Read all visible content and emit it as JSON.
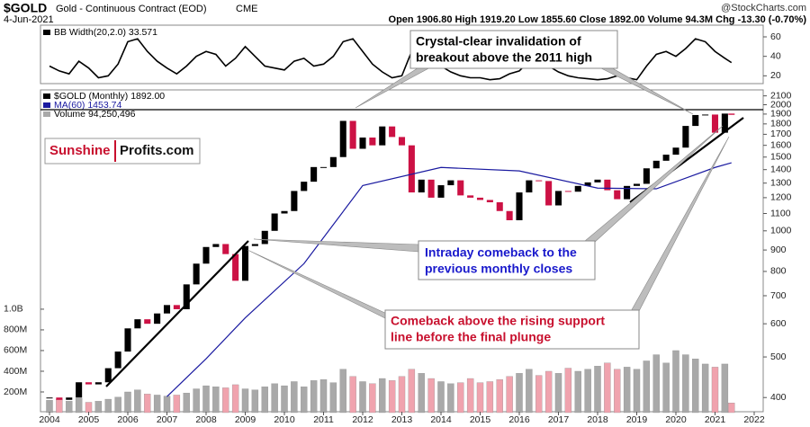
{
  "header": {
    "symbol": "$GOLD",
    "name": "Gold - Continuous Contract (EOD)",
    "exchange": "CME",
    "date": "4-Jun-2021",
    "quote": "Open 1906.80  High 1919.20  Low 1855.60  Close 1892.00  Volume 94.3M  Chg -13.30 (-0.70%)",
    "credit": "@StockCharts.com"
  },
  "logo": {
    "part1": "Sunshine",
    "part2": "Profits.com"
  },
  "annotations": [
    {
      "lines": [
        "Crystal-clear invalidation of",
        "breakout above the 2011 high"
      ],
      "color": "#000000"
    },
    {
      "lines": [
        "Intraday comeback to the",
        "previous monthly closes"
      ],
      "color": "#1a1acc"
    },
    {
      "lines": [
        "Comeback above the rising support",
        "line before the final plunge"
      ],
      "color": "#c8102e"
    }
  ],
  "chart_data": [
    {
      "type": "line",
      "ylim": [
        12,
        72
      ],
      "yticks": [
        20,
        40,
        60
      ],
      "xlim": [
        2003.77,
        2022.23
      ],
      "series": [
        {
          "name": "BB Width(20,2.0) 33.571",
          "color": "#000000",
          "x": [
            2004,
            2004.25,
            2004.5,
            2004.75,
            2005,
            2005.25,
            2005.5,
            2005.75,
            2006,
            2006.25,
            2006.5,
            2006.75,
            2007,
            2007.25,
            2007.5,
            2007.75,
            2008,
            2008.25,
            2008.5,
            2008.75,
            2009,
            2009.25,
            2009.5,
            2009.75,
            2010,
            2010.25,
            2010.5,
            2010.75,
            2011,
            2011.25,
            2011.5,
            2011.75,
            2012,
            2012.25,
            2012.5,
            2012.75,
            2013,
            2013.25,
            2013.5,
            2013.75,
            2014,
            2014.25,
            2014.5,
            2014.75,
            2015,
            2015.25,
            2015.5,
            2015.75,
            2016,
            2016.25,
            2016.5,
            2016.75,
            2017,
            2017.25,
            2017.5,
            2017.75,
            2018,
            2018.25,
            2018.5,
            2018.75,
            2019,
            2019.25,
            2019.5,
            2019.75,
            2020,
            2020.25,
            2020.5,
            2020.75,
            2021,
            2021.25,
            2021.42
          ],
          "values": [
            30,
            25,
            22,
            35,
            28,
            18,
            20,
            32,
            55,
            58,
            45,
            35,
            28,
            22,
            30,
            40,
            45,
            42,
            30,
            38,
            50,
            40,
            30,
            28,
            26,
            35,
            38,
            30,
            32,
            40,
            55,
            58,
            45,
            32,
            24,
            18,
            20,
            45,
            55,
            42,
            30,
            24,
            20,
            18,
            18,
            16,
            17,
            22,
            25,
            35,
            38,
            30,
            24,
            20,
            18,
            17,
            16,
            17,
            20,
            18,
            16,
            30,
            42,
            45,
            40,
            48,
            58,
            55,
            45,
            38,
            33.571
          ]
        }
      ]
    },
    {
      "type": "candlestick",
      "log": true,
      "ylim": [
        370,
        2170
      ],
      "xlim": [
        2003.77,
        2022.23
      ],
      "yticks": [
        400,
        500,
        600,
        700,
        800,
        900,
        1000,
        1100,
        1200,
        1300,
        1400,
        1500,
        1600,
        1700,
        1800,
        1900,
        2000,
        2100
      ],
      "xticks": [
        2004,
        2005,
        2006,
        2007,
        2008,
        2009,
        2010,
        2011,
        2012,
        2013,
        2014,
        2015,
        2016,
        2017,
        2018,
        2019,
        2020,
        2021,
        2022
      ],
      "series": [
        {
          "name": "$GOLD (Monthly) 1892.00",
          "type": "candlestick",
          "color": "#000000",
          "down_color": "#cc1144",
          "x": [
            2004,
            2004.25,
            2004.5,
            2004.75,
            2005,
            2005.25,
            2005.5,
            2005.75,
            2006,
            2006.25,
            2006.5,
            2006.75,
            2007,
            2007.25,
            2007.5,
            2007.75,
            2008,
            2008.25,
            2008.5,
            2008.75,
            2009,
            2009.25,
            2009.5,
            2009.75,
            2010,
            2010.25,
            2010.5,
            2010.75,
            2011,
            2011.25,
            2011.5,
            2011.75,
            2012,
            2012.25,
            2012.5,
            2012.75,
            2013,
            2013.25,
            2013.5,
            2013.75,
            2014,
            2014.25,
            2014.5,
            2014.75,
            2015,
            2015.25,
            2015.5,
            2015.75,
            2016,
            2016.25,
            2016.5,
            2016.75,
            2017,
            2017.25,
            2017.5,
            2017.75,
            2018,
            2018.25,
            2018.5,
            2018.75,
            2019,
            2019.25,
            2019.5,
            2019.75,
            2020,
            2020.25,
            2020.5,
            2020.75,
            2021,
            2021.25,
            2021.42
          ],
          "values": [
            400,
            395,
            400,
            435,
            430,
            435,
            470,
            515,
            585,
            615,
            600,
            635,
            665,
            650,
            745,
            835,
            915,
            930,
            880,
            760,
            920,
            930,
            1000,
            1100,
            1115,
            1245,
            1310,
            1420,
            1420,
            1500,
            1830,
            1570,
            1670,
            1600,
            1775,
            1675,
            1600,
            1235,
            1325,
            1200,
            1285,
            1320,
            1215,
            1200,
            1185,
            1170,
            1115,
            1060,
            1235,
            1320,
            1315,
            1150,
            1245,
            1240,
            1280,
            1305,
            1325,
            1250,
            1190,
            1280,
            1295,
            1410,
            1470,
            1520,
            1580,
            1780,
            1890,
            1895,
            1715,
            1905,
            1892
          ]
        },
        {
          "name": "MA(60) 1453.74",
          "type": "line",
          "color": "#1a1aa0",
          "x": [
            2007,
            2008,
            2009,
            2010.5,
            2012,
            2014,
            2016,
            2018,
            2019.5,
            2021,
            2021.42
          ],
          "values": [
            402,
            495,
            620,
            835,
            1283,
            1417,
            1390,
            1265,
            1260,
            1417,
            1453.74
          ]
        }
      ]
    },
    {
      "type": "bar",
      "ylim": [
        0,
        3120000000.0
      ],
      "xlim": [
        2003.77,
        2022.23
      ],
      "yticks": [
        {
          "value": 200000000.0,
          "label": "200M"
        },
        {
          "value": 400000000.0,
          "label": "400M"
        },
        {
          "value": 600000000.0,
          "label": "600M"
        },
        {
          "value": 800000000.0,
          "label": "800M"
        },
        {
          "value": 1000000000.0,
          "label": "1.0B"
        }
      ],
      "series": [
        {
          "name": "Volume 94,250,496",
          "color": "#a9a9a9",
          "down_color": "#f0a3ae",
          "x": [
            2004,
            2004.25,
            2004.5,
            2004.75,
            2005,
            2005.25,
            2005.5,
            2005.75,
            2006,
            2006.25,
            2006.5,
            2006.75,
            2007,
            2007.25,
            2007.5,
            2007.75,
            2008,
            2008.25,
            2008.5,
            2008.75,
            2009,
            2009.25,
            2009.5,
            2009.75,
            2010,
            2010.25,
            2010.5,
            2010.75,
            2011,
            2011.25,
            2011.5,
            2011.75,
            2012,
            2012.25,
            2012.5,
            2012.75,
            2013,
            2013.25,
            2013.5,
            2013.75,
            2014,
            2014.25,
            2014.5,
            2014.75,
            2015,
            2015.25,
            2015.5,
            2015.75,
            2016,
            2016.25,
            2016.5,
            2016.75,
            2017,
            2017.25,
            2017.5,
            2017.75,
            2018,
            2018.25,
            2018.5,
            2018.75,
            2019,
            2019.25,
            2019.5,
            2019.75,
            2020,
            2020.25,
            2020.5,
            2020.75,
            2021,
            2021.25,
            2021.42
          ],
          "values": [
            120000000.0,
            130000000.0,
            110000000.0,
            140000000.0,
            100000000.0,
            110000000.0,
            130000000.0,
            150000000.0,
            200000000.0,
            220000000.0,
            180000000.0,
            170000000.0,
            160000000.0,
            170000000.0,
            190000000.0,
            230000000.0,
            260000000.0,
            250000000.0,
            240000000.0,
            270000000.0,
            230000000.0,
            220000000.0,
            250000000.0,
            280000000.0,
            260000000.0,
            300000000.0,
            250000000.0,
            310000000.0,
            320000000.0,
            290000000.0,
            420000000.0,
            350000000.0,
            300000000.0,
            280000000.0,
            330000000.0,
            310000000.0,
            350000000.0,
            420000000.0,
            380000000.0,
            330000000.0,
            300000000.0,
            280000000.0,
            290000000.0,
            330000000.0,
            290000000.0,
            300000000.0,
            320000000.0,
            350000000.0,
            380000000.0,
            420000000.0,
            360000000.0,
            400000000.0,
            380000000.0,
            430000000.0,
            400000000.0,
            420000000.0,
            450000000.0,
            480000000.0,
            420000000.0,
            440000000.0,
            420000000.0,
            500000000.0,
            560000000.0,
            480000000.0,
            600000000.0,
            560000000.0,
            520000000.0,
            470000000.0,
            440000000.0,
            470000000.0,
            94250496
          ]
        }
      ]
    }
  ]
}
